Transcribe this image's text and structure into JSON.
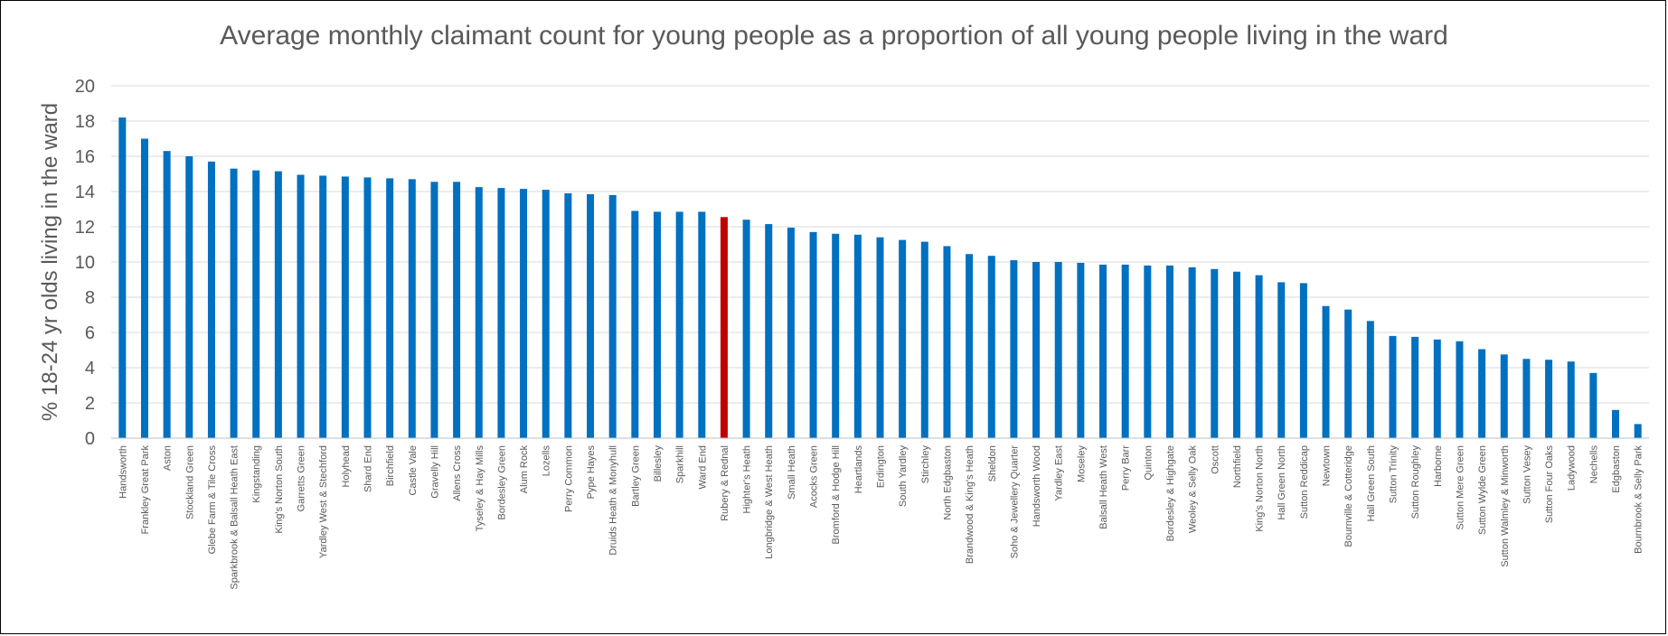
{
  "chart_data": {
    "type": "bar",
    "title": "Average monthly claimant count for young people as a proportion of all young people living in the ward",
    "xlabel": "",
    "ylabel": "% 18-24 yr olds living in the ward",
    "ylim": [
      0,
      20
    ],
    "yticks": [
      "0",
      "2",
      "4",
      "6",
      "8",
      "10",
      "12",
      "14",
      "16",
      "18",
      "20"
    ],
    "grid": true,
    "legend": "none",
    "colors": {
      "default": "#0070C0",
      "highlight": "#C00000",
      "grid": "#D9D9D9",
      "text": "#595959"
    },
    "highlight_category": "Rubery & Rednal",
    "categories": [
      "Handsworth",
      "Frankley Great Park",
      "Aston",
      "Stockland Green",
      "Glebe Farm & Tile Cross",
      "Sparkbrook & Balsall Heath East",
      "Kingstanding",
      "King's Norton South",
      "Garretts Green",
      "Yardley West & Stechford",
      "Holyhead",
      "Shard End",
      "Birchfield",
      "Castle Vale",
      "Gravelly Hill",
      "Allens Cross",
      "Tyseley & Hay Mills",
      "Bordesley Green",
      "Alum Rock",
      "Lozells",
      "Perry Common",
      "Pype Hayes",
      "Druids Heath & Monyhull",
      "Bartley Green",
      "Billesley",
      "Sparkhill",
      "Ward End",
      "Rubery & Rednal",
      "Highter's Heath",
      "Longbridge & West Heath",
      "Small Heath",
      "Acocks Green",
      "Bromford & Hodge Hill",
      "Heartlands",
      "Erdington",
      "South Yardley",
      "Stirchley",
      "North Edgbaston",
      "Brandwood & King's Heath",
      "Sheldon",
      "Soho & Jewellery Quarter",
      "Handsworth Wood",
      "Yardley East",
      "Moseley",
      "Balsall Heath West",
      "Perry Barr",
      "Quinton",
      "Bordesley & Highgate",
      "Weoley & Selly Oak",
      "Oscott",
      "Northfield",
      "King's Norton North",
      "Hall Green North",
      "Sutton Reddicap",
      "Newtown",
      "Bournville & Cotteridge",
      "Hall Green South",
      "Sutton Trinity",
      "Sutton Roughley",
      "Harborne",
      "Sutton Mere Green",
      "Sutton Wylde Green",
      "Sutton Walmley & Minworth",
      "Sutton Vesey",
      "Sutton Four Oaks",
      "Ladywood",
      "Nechells",
      "Edgbaston",
      "Bournbrook & Selly Park"
    ],
    "values": [
      18.2,
      17.0,
      16.3,
      16.0,
      15.7,
      15.3,
      15.2,
      15.15,
      14.95,
      14.9,
      14.85,
      14.8,
      14.75,
      14.7,
      14.55,
      14.55,
      14.25,
      14.2,
      14.15,
      14.1,
      13.9,
      13.85,
      13.8,
      12.9,
      12.85,
      12.85,
      12.85,
      12.55,
      12.4,
      12.15,
      11.95,
      11.7,
      11.6,
      11.55,
      11.4,
      11.25,
      11.15,
      10.9,
      10.45,
      10.35,
      10.1,
      10.0,
      10.0,
      9.95,
      9.85,
      9.85,
      9.8,
      9.8,
      9.7,
      9.6,
      9.45,
      9.25,
      8.85,
      8.8,
      7.5,
      7.3,
      6.65,
      5.8,
      5.75,
      5.6,
      5.5,
      5.05,
      4.75,
      4.5,
      4.45,
      4.35,
      3.7,
      1.6,
      0.8
    ]
  }
}
